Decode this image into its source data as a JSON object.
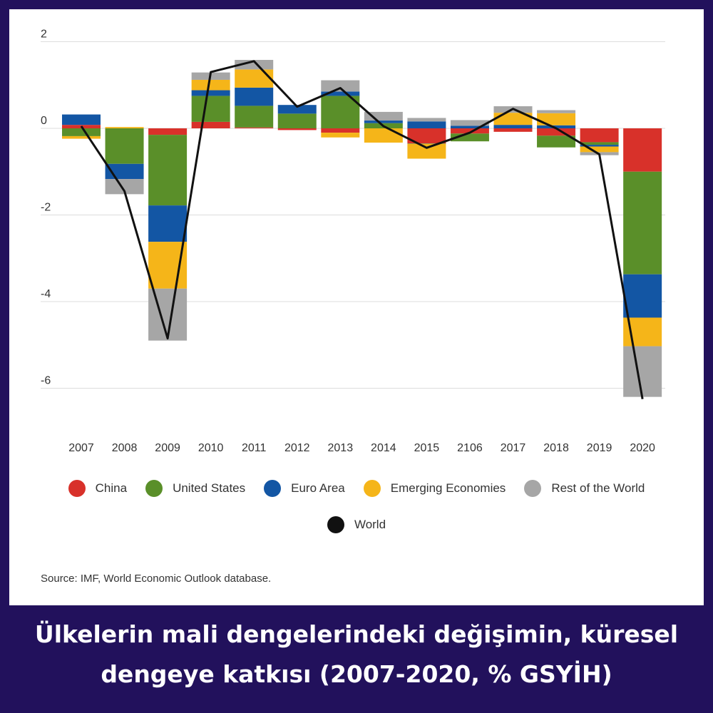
{
  "chart_data": {
    "type": "bar",
    "stacked": true,
    "categories": [
      "2007",
      "2008",
      "2009",
      "2010",
      "2011",
      "2012",
      "2013",
      "2014",
      "2015",
      "2106",
      "2017",
      "2018",
      "2019",
      "2020"
    ],
    "series": [
      {
        "name": "China",
        "color": "#d8312a",
        "values": [
          0.08,
          0.0,
          -0.15,
          0.15,
          0.02,
          -0.04,
          -0.1,
          0.0,
          -0.35,
          -0.12,
          -0.08,
          -0.17,
          -0.32,
          -1.0
        ]
      },
      {
        "name": "United States",
        "color": "#5a8f29",
        "values": [
          -0.18,
          -0.82,
          -1.63,
          0.6,
          0.5,
          0.34,
          0.75,
          0.12,
          -0.01,
          -0.18,
          0.0,
          -0.27,
          -0.06,
          -2.37
        ]
      },
      {
        "name": "Euro Area",
        "color": "#1356a4",
        "values": [
          0.24,
          -0.35,
          -0.84,
          0.13,
          0.42,
          0.2,
          0.1,
          0.06,
          0.16,
          0.06,
          0.08,
          0.07,
          -0.04,
          -1.0
        ]
      },
      {
        "name": "Emerging Economies",
        "color": "#f5b519",
        "values": [
          -0.06,
          0.03,
          -1.08,
          0.24,
          0.42,
          0.0,
          -0.11,
          -0.33,
          -0.34,
          0.0,
          0.28,
          0.28,
          -0.13,
          -0.66
        ]
      },
      {
        "name": "Rest of the World",
        "color": "#a6a6a6",
        "values": [
          0.0,
          -0.35,
          -1.2,
          0.17,
          0.22,
          0.0,
          0.26,
          0.2,
          0.08,
          0.13,
          0.15,
          0.07,
          -0.07,
          -1.17
        ]
      }
    ],
    "line": {
      "name": "World",
      "color": "#111111",
      "values": [
        0.05,
        -1.45,
        -4.85,
        1.3,
        1.55,
        0.5,
        0.93,
        0.05,
        -0.45,
        -0.1,
        0.45,
        0.0,
        -0.6,
        -6.25
      ]
    },
    "y_ticks": [
      "2",
      "0",
      "-2",
      "-4",
      "-6"
    ],
    "ylim": [
      -6.25,
      2.2
    ],
    "grid": true,
    "legend_position": "bottom"
  },
  "legend": {
    "items": [
      {
        "label": "China",
        "color": "#d8312a"
      },
      {
        "label": "United States",
        "color": "#5a8f29"
      },
      {
        "label": "Euro Area",
        "color": "#1356a4"
      },
      {
        "label": "Emerging Economies",
        "color": "#f5b519"
      },
      {
        "label": "Rest of the World",
        "color": "#a6a6a6"
      }
    ],
    "world": {
      "label": "World",
      "color": "#111111"
    }
  },
  "source": "Source: IMF, World Economic Outlook database.",
  "caption": {
    "line1": "Ülkelerin mali dengelerindeki değişimin, küresel",
    "line2": "dengeye katkısı (2007-2020, % GSYİH)"
  },
  "colors": {
    "frame": "#22115c",
    "panel": "#ffffff",
    "grid": "#dddddd"
  }
}
